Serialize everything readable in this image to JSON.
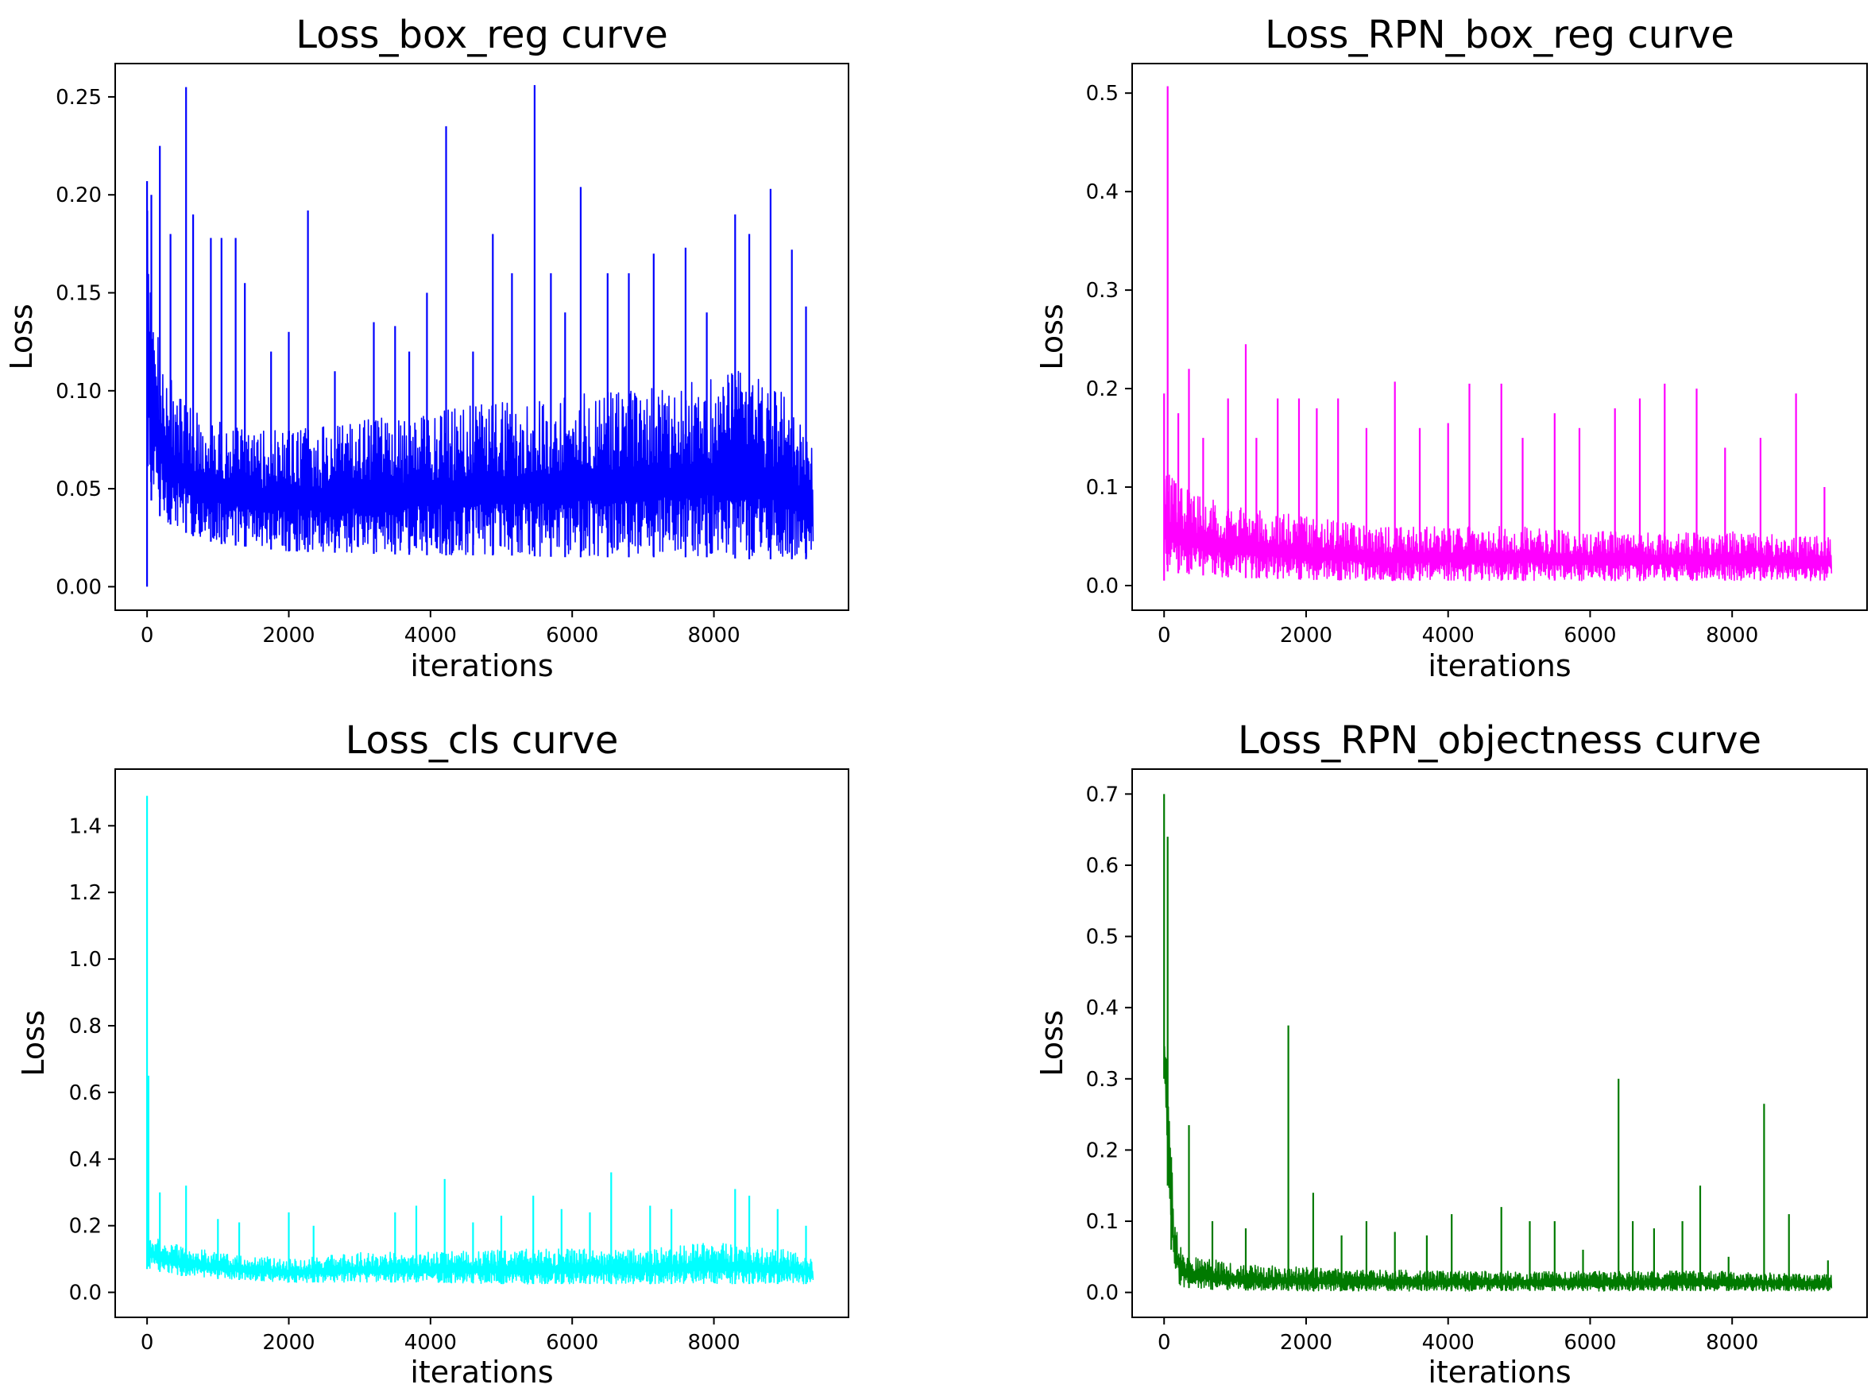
{
  "figure": {
    "panel_count": 4
  },
  "chart_data": [
    {
      "type": "line",
      "title": "Loss_box_reg curve",
      "xlabel": "iterations",
      "ylabel": "Loss",
      "color": "#0000ff",
      "xlim": [
        -450,
        9900
      ],
      "ylim": [
        -0.012,
        0.267
      ],
      "xticks": [
        0,
        2000,
        4000,
        6000,
        8000
      ],
      "xtick_labels": [
        "0",
        "2000",
        "4000",
        "6000",
        "8000"
      ],
      "yticks": [
        0.0,
        0.05,
        0.1,
        0.15,
        0.2,
        0.25
      ],
      "ytick_labels": [
        "0.00",
        "0.05",
        "0.10",
        "0.15",
        "0.20",
        "0.25"
      ],
      "grid": false,
      "series": [
        {
          "name": "Loss_box_reg",
          "envelope": {
            "x": [
              0,
              20,
              50,
              100,
              200,
              400,
              700,
              1000,
              1500,
              2000,
              3000,
              4000,
              5000,
              6000,
              7000,
              8000,
              8500,
              9000,
              9400
            ],
            "lower": [
              0.0,
              0.05,
              0.045,
              0.04,
              0.035,
              0.03,
              0.025,
              0.022,
              0.02,
              0.018,
              0.017,
              0.016,
              0.016,
              0.015,
              0.015,
              0.015,
              0.014,
              0.014,
              0.014
            ],
            "upper": [
              0.2,
              0.18,
              0.16,
              0.14,
              0.12,
              0.1,
              0.09,
              0.085,
              0.08,
              0.08,
              0.085,
              0.09,
              0.095,
              0.1,
              0.1,
              0.11,
              0.11,
              0.1,
              0.07
            ]
          },
          "spikes": [
            {
              "x": 0,
              "y": 0.207
            },
            {
              "x": 60,
              "y": 0.2
            },
            {
              "x": 180,
              "y": 0.225
            },
            {
              "x": 330,
              "y": 0.18
            },
            {
              "x": 550,
              "y": 0.255
            },
            {
              "x": 650,
              "y": 0.19
            },
            {
              "x": 900,
              "y": 0.178
            },
            {
              "x": 1050,
              "y": 0.178
            },
            {
              "x": 1250,
              "y": 0.178
            },
            {
              "x": 1380,
              "y": 0.155
            },
            {
              "x": 1750,
              "y": 0.12
            },
            {
              "x": 2000,
              "y": 0.13
            },
            {
              "x": 2270,
              "y": 0.192
            },
            {
              "x": 2650,
              "y": 0.11
            },
            {
              "x": 3200,
              "y": 0.135
            },
            {
              "x": 3500,
              "y": 0.133
            },
            {
              "x": 3700,
              "y": 0.12
            },
            {
              "x": 3950,
              "y": 0.15
            },
            {
              "x": 4220,
              "y": 0.235
            },
            {
              "x": 4600,
              "y": 0.12
            },
            {
              "x": 4880,
              "y": 0.18
            },
            {
              "x": 5150,
              "y": 0.16
            },
            {
              "x": 5470,
              "y": 0.256
            },
            {
              "x": 5700,
              "y": 0.16
            },
            {
              "x": 5900,
              "y": 0.14
            },
            {
              "x": 6120,
              "y": 0.204
            },
            {
              "x": 6500,
              "y": 0.16
            },
            {
              "x": 6800,
              "y": 0.16
            },
            {
              "x": 7150,
              "y": 0.17
            },
            {
              "x": 7600,
              "y": 0.173
            },
            {
              "x": 7900,
              "y": 0.14
            },
            {
              "x": 8300,
              "y": 0.19
            },
            {
              "x": 8500,
              "y": 0.18
            },
            {
              "x": 8800,
              "y": 0.203
            },
            {
              "x": 9100,
              "y": 0.172
            },
            {
              "x": 9300,
              "y": 0.143
            }
          ]
        }
      ]
    },
    {
      "type": "line",
      "title": "Loss_RPN_box_reg curve",
      "xlabel": "iterations",
      "ylabel": "Loss",
      "color": "#ff00ff",
      "xlim": [
        -450,
        9900
      ],
      "ylim": [
        -0.025,
        0.53
      ],
      "xticks": [
        0,
        2000,
        4000,
        6000,
        8000
      ],
      "xtick_labels": [
        "0",
        "2000",
        "4000",
        "6000",
        "8000"
      ],
      "yticks": [
        0.0,
        0.1,
        0.2,
        0.3,
        0.4,
        0.5
      ],
      "ytick_labels": [
        "0.0",
        "0.1",
        "0.2",
        "0.3",
        "0.4",
        "0.5"
      ],
      "grid": false,
      "series": [
        {
          "name": "Loss_RPN_box_reg",
          "envelope": {
            "x": [
              0,
              20,
              100,
              300,
              600,
              1000,
              2000,
              3000,
              4000,
              5000,
              6000,
              7000,
              8000,
              9000,
              9400
            ],
            "lower": [
              0.005,
              0.015,
              0.013,
              0.012,
              0.01,
              0.008,
              0.006,
              0.005,
              0.005,
              0.005,
              0.005,
              0.005,
              0.005,
              0.005,
              0.005
            ],
            "upper": [
              0.12,
              0.12,
              0.11,
              0.1,
              0.09,
              0.08,
              0.07,
              0.06,
              0.06,
              0.06,
              0.055,
              0.055,
              0.055,
              0.05,
              0.05
            ]
          },
          "spikes": [
            {
              "x": 0,
              "y": 0.195
            },
            {
              "x": 50,
              "y": 0.507
            },
            {
              "x": 200,
              "y": 0.175
            },
            {
              "x": 350,
              "y": 0.22
            },
            {
              "x": 550,
              "y": 0.15
            },
            {
              "x": 900,
              "y": 0.19
            },
            {
              "x": 1150,
              "y": 0.245
            },
            {
              "x": 1300,
              "y": 0.15
            },
            {
              "x": 1600,
              "y": 0.19
            },
            {
              "x": 1900,
              "y": 0.19
            },
            {
              "x": 2150,
              "y": 0.18
            },
            {
              "x": 2450,
              "y": 0.19
            },
            {
              "x": 2850,
              "y": 0.16
            },
            {
              "x": 3250,
              "y": 0.207
            },
            {
              "x": 3600,
              "y": 0.16
            },
            {
              "x": 4000,
              "y": 0.165
            },
            {
              "x": 4300,
              "y": 0.205
            },
            {
              "x": 4750,
              "y": 0.205
            },
            {
              "x": 5050,
              "y": 0.15
            },
            {
              "x": 5500,
              "y": 0.175
            },
            {
              "x": 5850,
              "y": 0.16
            },
            {
              "x": 6350,
              "y": 0.18
            },
            {
              "x": 6700,
              "y": 0.19
            },
            {
              "x": 7050,
              "y": 0.205
            },
            {
              "x": 7500,
              "y": 0.2
            },
            {
              "x": 7900,
              "y": 0.14
            },
            {
              "x": 8400,
              "y": 0.15
            },
            {
              "x": 8900,
              "y": 0.195
            },
            {
              "x": 9300,
              "y": 0.1
            }
          ]
        }
      ]
    },
    {
      "type": "line",
      "title": "Loss_cls curve",
      "xlabel": "iterations",
      "ylabel": "Loss",
      "color": "#00ffff",
      "xlim": [
        -450,
        9900
      ],
      "ylim": [
        -0.075,
        1.57
      ],
      "xticks": [
        0,
        2000,
        4000,
        6000,
        8000
      ],
      "xtick_labels": [
        "0",
        "2000",
        "4000",
        "6000",
        "8000"
      ],
      "yticks": [
        0.0,
        0.2,
        0.4,
        0.6,
        0.8,
        1.0,
        1.2,
        1.4
      ],
      "ytick_labels": [
        "0.0",
        "0.2",
        "0.4",
        "0.6",
        "0.8",
        "1.0",
        "1.2",
        "1.4"
      ],
      "grid": false,
      "series": [
        {
          "name": "Loss_cls",
          "envelope": {
            "x": [
              0,
              10,
              50,
              200,
              500,
              1000,
              1500,
              2000,
              3000,
              4000,
              5000,
              6000,
              7000,
              8000,
              9000,
              9400
            ],
            "lower": [
              0.07,
              0.08,
              0.07,
              0.06,
              0.05,
              0.04,
              0.035,
              0.03,
              0.03,
              0.03,
              0.025,
              0.025,
              0.025,
              0.025,
              0.025,
              0.025
            ],
            "upper": [
              0.2,
              0.2,
              0.18,
              0.16,
              0.14,
              0.12,
              0.11,
              0.1,
              0.12,
              0.12,
              0.13,
              0.13,
              0.13,
              0.15,
              0.13,
              0.1
            ]
          },
          "spikes": [
            {
              "x": 0,
              "y": 1.49
            },
            {
              "x": 20,
              "y": 0.65
            },
            {
              "x": 180,
              "y": 0.3
            },
            {
              "x": 550,
              "y": 0.32
            },
            {
              "x": 1000,
              "y": 0.22
            },
            {
              "x": 1300,
              "y": 0.21
            },
            {
              "x": 2000,
              "y": 0.24
            },
            {
              "x": 2350,
              "y": 0.2
            },
            {
              "x": 3500,
              "y": 0.24
            },
            {
              "x": 3800,
              "y": 0.26
            },
            {
              "x": 4200,
              "y": 0.34
            },
            {
              "x": 4600,
              "y": 0.21
            },
            {
              "x": 5000,
              "y": 0.23
            },
            {
              "x": 5450,
              "y": 0.29
            },
            {
              "x": 5850,
              "y": 0.25
            },
            {
              "x": 6250,
              "y": 0.24
            },
            {
              "x": 6550,
              "y": 0.36
            },
            {
              "x": 7100,
              "y": 0.26
            },
            {
              "x": 7400,
              "y": 0.25
            },
            {
              "x": 8300,
              "y": 0.31
            },
            {
              "x": 8500,
              "y": 0.29
            },
            {
              "x": 8900,
              "y": 0.25
            },
            {
              "x": 9300,
              "y": 0.2
            }
          ]
        }
      ]
    },
    {
      "type": "line",
      "title": "Loss_RPN_objectness curve",
      "xlabel": "iterations",
      "ylabel": "Loss",
      "color": "#007a00",
      "xlim": [
        -450,
        9900
      ],
      "ylim": [
        -0.035,
        0.735
      ],
      "xticks": [
        0,
        2000,
        4000,
        6000,
        8000
      ],
      "xtick_labels": [
        "0",
        "2000",
        "4000",
        "6000",
        "8000"
      ],
      "yticks": [
        0.0,
        0.1,
        0.2,
        0.3,
        0.4,
        0.5,
        0.6,
        0.7
      ],
      "ytick_labels": [
        "0.0",
        "0.1",
        "0.2",
        "0.3",
        "0.4",
        "0.5",
        "0.6",
        "0.7"
      ],
      "grid": false,
      "series": [
        {
          "name": "Loss_RPN_objectness",
          "envelope": {
            "x": [
              0,
              20,
              50,
              100,
              150,
              250,
              500,
              1000,
              2000,
              4000,
              6000,
              8000,
              9400
            ],
            "lower": [
              0.3,
              0.25,
              0.15,
              0.06,
              0.02,
              0.008,
              0.004,
              0.003,
              0.002,
              0.002,
              0.002,
              0.002,
              0.002
            ],
            "upper": [
              0.38,
              0.36,
              0.3,
              0.2,
              0.1,
              0.06,
              0.05,
              0.04,
              0.035,
              0.03,
              0.03,
              0.03,
              0.025
            ]
          },
          "spikes": [
            {
              "x": 0,
              "y": 0.7
            },
            {
              "x": 50,
              "y": 0.64
            },
            {
              "x": 100,
              "y": 0.19
            },
            {
              "x": 350,
              "y": 0.235
            },
            {
              "x": 680,
              "y": 0.1
            },
            {
              "x": 1150,
              "y": 0.09
            },
            {
              "x": 1750,
              "y": 0.375
            },
            {
              "x": 2100,
              "y": 0.14
            },
            {
              "x": 2500,
              "y": 0.08
            },
            {
              "x": 2850,
              "y": 0.1
            },
            {
              "x": 3250,
              "y": 0.085
            },
            {
              "x": 3700,
              "y": 0.08
            },
            {
              "x": 4050,
              "y": 0.11
            },
            {
              "x": 4750,
              "y": 0.12
            },
            {
              "x": 5150,
              "y": 0.1
            },
            {
              "x": 5500,
              "y": 0.1
            },
            {
              "x": 5900,
              "y": 0.06
            },
            {
              "x": 6400,
              "y": 0.3
            },
            {
              "x": 6600,
              "y": 0.1
            },
            {
              "x": 6900,
              "y": 0.09
            },
            {
              "x": 7300,
              "y": 0.1
            },
            {
              "x": 7550,
              "y": 0.15
            },
            {
              "x": 7950,
              "y": 0.05
            },
            {
              "x": 8450,
              "y": 0.265
            },
            {
              "x": 8800,
              "y": 0.11
            },
            {
              "x": 9350,
              "y": 0.045
            }
          ]
        }
      ]
    }
  ]
}
